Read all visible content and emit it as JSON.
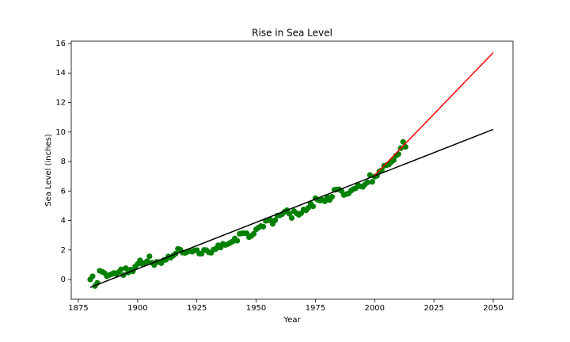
{
  "chart_data": {
    "type": "scatter",
    "title": "Rise in Sea Level",
    "xlabel": "Year",
    "ylabel": "Sea Level (inches)",
    "x": [
      1880,
      1881,
      1882,
      1883,
      1884,
      1885,
      1886,
      1887,
      1888,
      1889,
      1890,
      1891,
      1892,
      1893,
      1894,
      1895,
      1896,
      1897,
      1898,
      1899,
      1900,
      1901,
      1902,
      1903,
      1904,
      1905,
      1906,
      1907,
      1908,
      1909,
      1910,
      1911,
      1912,
      1913,
      1914,
      1915,
      1916,
      1917,
      1918,
      1919,
      1920,
      1921,
      1922,
      1923,
      1924,
      1925,
      1926,
      1927,
      1928,
      1929,
      1930,
      1931,
      1932,
      1933,
      1934,
      1935,
      1936,
      1937,
      1938,
      1939,
      1940,
      1941,
      1942,
      1943,
      1944,
      1945,
      1946,
      1947,
      1948,
      1949,
      1950,
      1951,
      1952,
      1953,
      1954,
      1955,
      1956,
      1957,
      1958,
      1959,
      1960,
      1961,
      1962,
      1963,
      1964,
      1965,
      1966,
      1967,
      1968,
      1969,
      1970,
      1971,
      1972,
      1973,
      1974,
      1975,
      1976,
      1977,
      1978,
      1979,
      1980,
      1981,
      1982,
      1983,
      1984,
      1985,
      1986,
      1987,
      1988,
      1989,
      1990,
      1991,
      1992,
      1993,
      1994,
      1995,
      1996,
      1997,
      1998,
      1999,
      2000,
      2001,
      2002,
      2003,
      2004,
      2005,
      2006,
      2007,
      2008,
      2009,
      2010,
      2011,
      2012,
      2013
    ],
    "values": [
      0.0,
      0.22,
      -0.44,
      -0.23,
      0.59,
      0.53,
      0.44,
      0.22,
      0.3,
      0.36,
      0.44,
      0.37,
      0.5,
      0.69,
      0.3,
      0.77,
      0.47,
      0.67,
      0.55,
      0.87,
      1.05,
      1.3,
      1.06,
      1.13,
      1.24,
      1.57,
      1.14,
      0.98,
      1.19,
      1.18,
      1.11,
      1.31,
      1.34,
      1.56,
      1.48,
      1.62,
      1.75,
      2.08,
      2.02,
      1.82,
      1.8,
      1.87,
      1.94,
      1.88,
      1.97,
      1.99,
      1.75,
      1.75,
      2.0,
      1.99,
      1.84,
      1.81,
      2.03,
      2.07,
      2.32,
      2.17,
      2.42,
      2.34,
      2.39,
      2.48,
      2.57,
      2.78,
      2.63,
      3.1,
      3.13,
      3.14,
      3.13,
      2.87,
      2.96,
      3.1,
      3.4,
      3.52,
      3.62,
      3.58,
      3.98,
      4.0,
      4.05,
      3.77,
      4.02,
      4.33,
      4.35,
      4.43,
      4.59,
      4.7,
      4.46,
      4.17,
      4.63,
      4.49,
      4.38,
      4.5,
      4.75,
      4.68,
      4.86,
      5.14,
      4.96,
      5.51,
      5.4,
      5.35,
      5.39,
      5.3,
      5.59,
      5.39,
      5.61,
      6.08,
      6.1,
      6.11,
      6.0,
      5.73,
      5.79,
      5.83,
      6.02,
      6.13,
      6.19,
      6.39,
      6.32,
      6.28,
      6.46,
      6.59,
      7.08,
      6.62,
      6.97,
      7.04,
      7.34,
      7.4,
      7.71,
      7.75,
      7.8,
      7.96,
      8.09,
      8.4,
      8.5,
      8.9,
      9.33,
      8.99
    ],
    "color": "green",
    "lines": [
      {
        "x": [
          1880,
          2050
        ],
        "values": [
          -0.54,
          10.18
        ],
        "color": "black"
      },
      {
        "x": [
          2000,
          2050
        ],
        "values": [
          7.06,
          15.38
        ],
        "color": "red"
      }
    ],
    "xlim": [
      1872.0,
      2058.35
    ],
    "ylim": [
      -1.34,
      16.16
    ],
    "xticks": [
      1875,
      1900,
      1925,
      1950,
      1975,
      2000,
      2025,
      2050
    ],
    "yticks": [
      0,
      2,
      4,
      6,
      8,
      10,
      12,
      14,
      16
    ]
  }
}
